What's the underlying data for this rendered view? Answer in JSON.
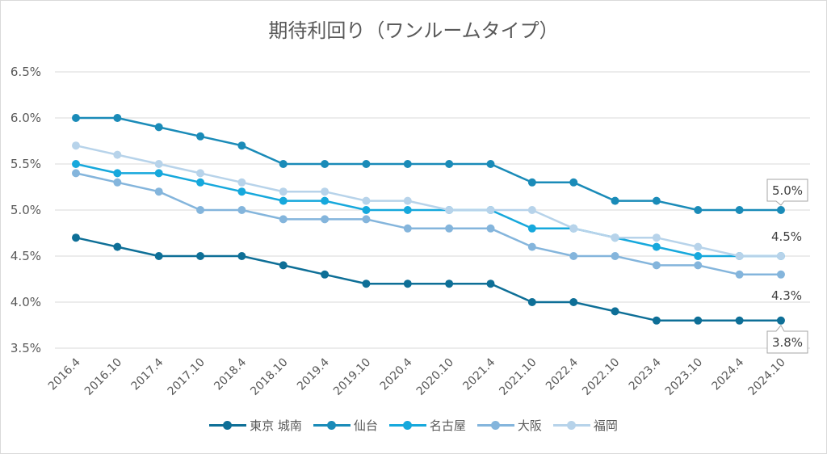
{
  "chart_data": {
    "type": "line",
    "title": "期待利回り（ワンルームタイプ）",
    "categories": [
      "2016.4",
      "2016.10",
      "2017.4",
      "2017.10",
      "2018.4",
      "2018.10",
      "2019.4",
      "2019.10",
      "2020.4",
      "2020.10",
      "2021.4",
      "2021.10",
      "2022.4",
      "2022.10",
      "2023.4",
      "2023.10",
      "2024.4",
      "2024.10"
    ],
    "ylim": [
      3.5,
      6.5
    ],
    "yticks": [
      "3.5%",
      "4.0%",
      "4.5%",
      "5.0%",
      "5.5%",
      "6.0%",
      "6.5%"
    ],
    "grid": true,
    "legend_position": "bottom",
    "series": [
      {
        "name": "東京 城南",
        "color": "#0e6f97",
        "values": [
          4.7,
          4.6,
          4.5,
          4.5,
          4.5,
          4.4,
          4.3,
          4.2,
          4.2,
          4.2,
          4.2,
          4.0,
          4.0,
          3.9,
          3.8,
          3.8,
          3.8,
          3.8
        ]
      },
      {
        "name": "仙台",
        "color": "#1a8bb8",
        "values": [
          6.0,
          6.0,
          5.9,
          5.8,
          5.7,
          5.5,
          5.5,
          5.5,
          5.5,
          5.5,
          5.5,
          5.3,
          5.3,
          5.1,
          5.1,
          5.0,
          5.0,
          5.0
        ]
      },
      {
        "name": "名古屋",
        "color": "#16a8dc",
        "values": [
          5.5,
          5.4,
          5.4,
          5.3,
          5.2,
          5.1,
          5.1,
          5.0,
          5.0,
          5.0,
          5.0,
          4.8,
          4.8,
          4.7,
          4.6,
          4.5,
          4.5,
          4.5
        ]
      },
      {
        "name": "大阪",
        "color": "#84b5dc",
        "values": [
          5.4,
          5.3,
          5.2,
          5.0,
          5.0,
          4.9,
          4.9,
          4.9,
          4.8,
          4.8,
          4.8,
          4.6,
          4.5,
          4.5,
          4.4,
          4.4,
          4.3,
          4.3
        ]
      },
      {
        "name": "福岡",
        "color": "#b7d3ea",
        "values": [
          5.7,
          5.6,
          5.5,
          5.4,
          5.3,
          5.2,
          5.2,
          5.1,
          5.1,
          5.0,
          5.0,
          5.0,
          4.8,
          4.7,
          4.7,
          4.6,
          4.5,
          4.5
        ]
      }
    ],
    "annotations": [
      "5.0%",
      "4.5%",
      "4.3%",
      "3.8%"
    ]
  }
}
